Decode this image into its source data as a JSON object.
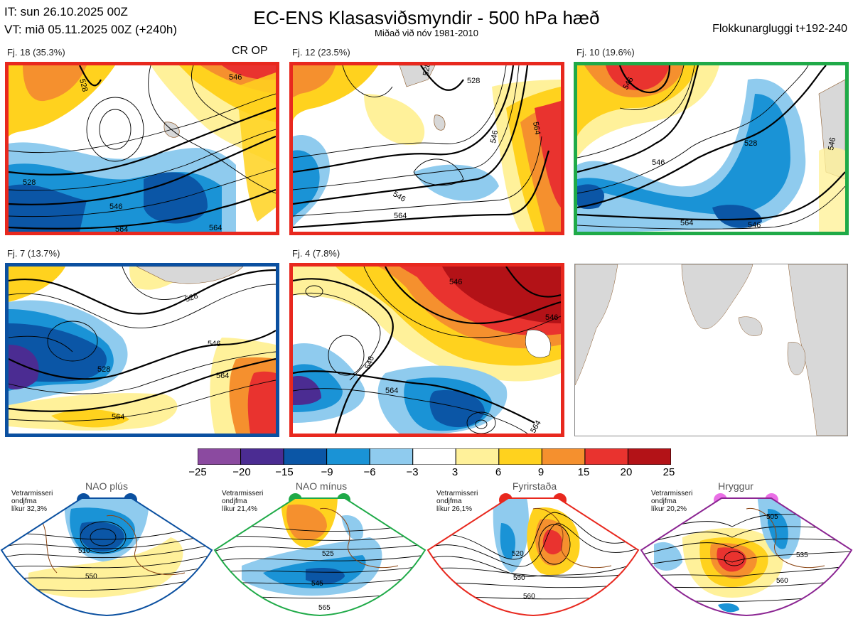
{
  "header": {
    "it": "IT: sun 26.10.2025 00Z",
    "vt": "VT: mið 05.11.2025 00Z  (+240h)",
    "title": "EC-ENS Klasasviðsmyndir - 500 hPa hæð",
    "subtitle": "Miðað við nóv 1981-2010",
    "window": "Flokkunargluggi t+192-240"
  },
  "panels": [
    {
      "label": "Fj. 18 (35.3%)",
      "tag": "CR OP",
      "border": "#e8281e",
      "contours": [
        "528",
        "546",
        "528",
        "546",
        "564",
        "564"
      ]
    },
    {
      "label": "Fj. 12 (23.5%)",
      "border": "#e8281e",
      "contours": [
        "528",
        "528",
        "546",
        "564",
        "546",
        "564"
      ]
    },
    {
      "label": "Fj. 10 (19.6%)",
      "border": "#1faa48",
      "contours": [
        "546",
        "528",
        "546",
        "564",
        "546",
        "546"
      ]
    },
    {
      "label": "Fj. 7 (13.7%)",
      "border": "#0b50a0",
      "contours": [
        "528",
        "546",
        "564",
        "528",
        "564"
      ]
    },
    {
      "label": "Fj. 4 (7.8%)",
      "border": "#e8281e",
      "contours": [
        "546",
        "546",
        "546",
        "564",
        "564"
      ]
    }
  ],
  "colorbar": {
    "colors": [
      "#8b4aa0",
      "#4b2c92",
      "#0b56a6",
      "#1a93d6",
      "#8fcbee",
      "#ffffff",
      "#fff19a",
      "#ffd21e",
      "#f5902e",
      "#e9332f",
      "#b31217"
    ],
    "labels": [
      "−25",
      "−20",
      "−15",
      "−9",
      "−6",
      "−3",
      "3",
      "6",
      "9",
      "15",
      "20",
      "25"
    ]
  },
  "regimes": [
    {
      "title": "NAO plús",
      "note": [
        "Vetrarmisseri",
        "ondjfma",
        "líkur 32,3%"
      ],
      "color": "#0b50a0",
      "contours": [
        "510",
        "550"
      ]
    },
    {
      "title": "NAO mínus",
      "note": [
        "Vetrarmisseri",
        "ondjfma",
        "líkur 21,4%"
      ],
      "color": "#1faa48",
      "contours": [
        "525",
        "545",
        "565"
      ]
    },
    {
      "title": "Fyrirstaða",
      "note": [
        "Vetrarmisseri",
        "ondjfma",
        "líkur 26,1%"
      ],
      "color": "#e8281e",
      "contours": [
        "520",
        "550",
        "560"
      ]
    },
    {
      "title": "Hryggur",
      "note": [
        "Vetrarmisseri",
        "ondjfma",
        "líkur 20,2%"
      ],
      "color": "#ea6fe6",
      "border": "#8b2592",
      "contours": [
        "505",
        "535",
        "560"
      ]
    }
  ]
}
